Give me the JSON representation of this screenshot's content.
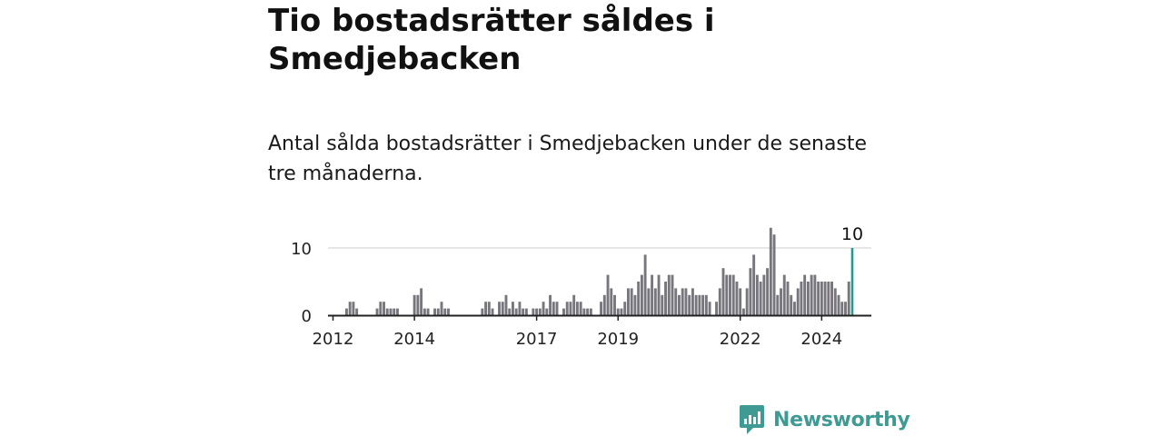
{
  "header": {
    "title": "Tio bostadsrätter såldes i Smedjebacken",
    "subtitle": "Antal sålda bostadsrätter i Smedjebacken under de senaste tre månaderna."
  },
  "brand": {
    "name": "Newsworthy",
    "icon": "newsworthy-logo-icon",
    "color": "#3f9a93"
  },
  "colors": {
    "bar": "#77767c",
    "highlight": "#1f9e8f",
    "grid": "#dddddd",
    "axis": "#222222"
  },
  "chart_data": {
    "type": "bar",
    "x_start": "2012-01",
    "x_unit": "month",
    "x_tick_labels": [
      "2012",
      "2014",
      "2017",
      "2019",
      "2022",
      "2024"
    ],
    "y_ticks": [
      0,
      10
    ],
    "ylim": [
      0,
      13
    ],
    "highlight_label": "10",
    "values": [
      0,
      0,
      0,
      0,
      1,
      2,
      2,
      1,
      0,
      0,
      0,
      0,
      0,
      1,
      2,
      2,
      1,
      1,
      1,
      1,
      0,
      0,
      0,
      0,
      3,
      3,
      4,
      1,
      1,
      0,
      1,
      1,
      2,
      1,
      1,
      0,
      0,
      0,
      0,
      0,
      0,
      0,
      0,
      0,
      1,
      2,
      2,
      1,
      0,
      2,
      2,
      3,
      1,
      2,
      1,
      2,
      1,
      1,
      0,
      1,
      1,
      1,
      2,
      1,
      3,
      2,
      2,
      0,
      1,
      2,
      2,
      3,
      2,
      2,
      1,
      1,
      1,
      0,
      0,
      2,
      3,
      6,
      4,
      3,
      1,
      1,
      2,
      4,
      4,
      3,
      5,
      6,
      9,
      4,
      6,
      4,
      6,
      3,
      5,
      6,
      6,
      4,
      3,
      4,
      4,
      3,
      4,
      3,
      3,
      3,
      3,
      2,
      0,
      2,
      4,
      7,
      6,
      6,
      6,
      5,
      4,
      1,
      4,
      7,
      9,
      6,
      5,
      6,
      7,
      13,
      12,
      3,
      4,
      6,
      5,
      3,
      2,
      4,
      5,
      6,
      5,
      6,
      6,
      5,
      5,
      5,
      5,
      5,
      4,
      3,
      2,
      2,
      5,
      10
    ],
    "highlight_index": 153
  }
}
